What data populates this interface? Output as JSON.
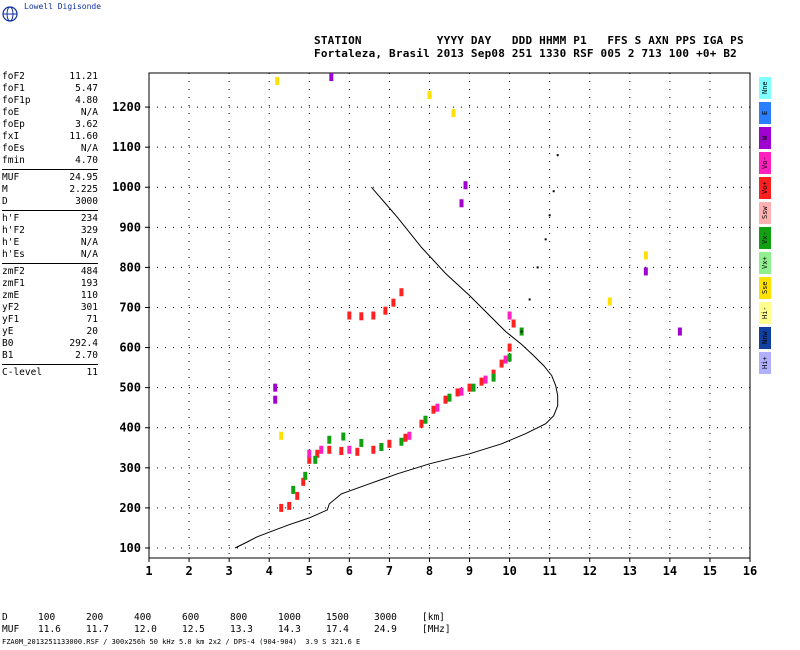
{
  "logo": {
    "text": "Lowell Digisonde"
  },
  "header": {
    "labels_line": "STATION           YYYY DAY   DDD HHMM P1   FFS S AXN PPS IGA PS",
    "values_line": "Fortaleza, Brasil 2013 Sep08 251 1330 RSF 005 2 713 100 +0+ B2"
  },
  "params": {
    "group1": [
      {
        "name": "foF2",
        "value": "11.21"
      },
      {
        "name": "foF1",
        "value": "5.47"
      },
      {
        "name": "foF1p",
        "value": "4.80"
      },
      {
        "name": "foE",
        "value": "N/A"
      },
      {
        "name": "foEp",
        "value": "3.62"
      },
      {
        "name": "fxI",
        "value": "11.60"
      },
      {
        "name": "foEs",
        "value": "N/A"
      },
      {
        "name": "fmin",
        "value": "4.70"
      }
    ],
    "group2": [
      {
        "name": "MUF",
        "value": "24.95"
      },
      {
        "name": "M",
        "value": "2.225"
      },
      {
        "name": "D",
        "value": "3000"
      }
    ],
    "group3": [
      {
        "name": "h'F",
        "value": "234"
      },
      {
        "name": "h'F2",
        "value": "329"
      },
      {
        "name": "h'E",
        "value": "N/A"
      },
      {
        "name": "h'Es",
        "value": "N/A"
      }
    ],
    "group4": [
      {
        "name": "zmF2",
        "value": "484"
      },
      {
        "name": "zmF1",
        "value": "193"
      },
      {
        "name": "zmE",
        "value": "110"
      },
      {
        "name": "yF2",
        "value": "301"
      },
      {
        "name": "yF1",
        "value": "71"
      },
      {
        "name": "yE",
        "value": "20"
      },
      {
        "name": "B0",
        "value": "292.4"
      },
      {
        "name": "B1",
        "value": "2.70"
      }
    ],
    "group5": [
      {
        "name": "C-level",
        "value": "11"
      }
    ]
  },
  "legend": [
    {
      "label": "Nne",
      "color": "#7fffff"
    },
    {
      "label": "E",
      "color": "#2a7fff"
    },
    {
      "label": "W",
      "color": "#a000d0"
    },
    {
      "label": "Vo-",
      "color": "#ff20c0"
    },
    {
      "label": "Vo+",
      "color": "#ff2020"
    },
    {
      "label": "Ssw",
      "color": "#ffb0b0"
    },
    {
      "label": "Vx-",
      "color": "#10a010"
    },
    {
      "label": "Vx+",
      "color": "#90f090"
    },
    {
      "label": "Sse",
      "color": "#ffe000"
    },
    {
      "label": "Hi-",
      "color": "#ffff90"
    },
    {
      "label": "Nnw",
      "color": "#1040a0"
    },
    {
      "label": "Hi+",
      "color": "#b0b0ff"
    }
  ],
  "muf_table": {
    "d_label": "D",
    "d_values": [
      "100",
      "200",
      "400",
      "600",
      "800",
      "1000",
      "1500",
      "3000"
    ],
    "d_unit": "[km]",
    "muf_label": "MUF",
    "muf_values": [
      "11.6",
      "11.7",
      "12.0",
      "12.5",
      "13.3",
      "14.3",
      "17.4",
      "24.9"
    ],
    "muf_unit": "[MHz]"
  },
  "footer": "FZA0M_2013251133000.RSF / 300x256h 50 kHz 5.0 km 2x2 / DPS-4 (904-904)  3.9 S 321.6 E",
  "chart_data": {
    "type": "scatter",
    "title": "",
    "xlabel": "",
    "ylabel": "",
    "xlim": [
      1,
      16
    ],
    "ylim": [
      75,
      1285
    ],
    "x_ticks": [
      1,
      2,
      3,
      4,
      5,
      6,
      7,
      8,
      9,
      10,
      11,
      12,
      13,
      14,
      15,
      16
    ],
    "y_ticks": [
      100,
      200,
      300,
      400,
      500,
      600,
      700,
      800,
      900,
      1000,
      1100,
      1200
    ],
    "grid": true,
    "series": [
      {
        "color": "#000000",
        "style": "line",
        "x": [
          6.55,
          7.2,
          7.8,
          8.4,
          9.0,
          9.5,
          9.9,
          10.3,
          10.6,
          10.85,
          11.05,
          11.15,
          11.2,
          11.2,
          11.1,
          10.9,
          10.4,
          9.8,
          9.0,
          8.0,
          7.2,
          6.5,
          5.8,
          5.5,
          5.45,
          5.0,
          4.5,
          4.1,
          3.7,
          3.45,
          3.25,
          3.15
        ],
        "y": [
          1000,
          925,
          850,
          785,
          730,
          680,
          640,
          608,
          580,
          555,
          530,
          505,
          480,
          455,
          430,
          410,
          385,
          360,
          335,
          310,
          285,
          260,
          235,
          210,
          195,
          175,
          158,
          143,
          128,
          115,
          105,
          100
        ]
      },
      {
        "color": "#ff2020",
        "style": "points",
        "x": [
          4.3,
          4.5,
          4.7,
          4.85,
          5.0,
          5.2,
          5.5,
          5.8,
          6.2,
          6.6,
          7.0,
          7.4,
          7.8,
          8.1,
          8.4,
          8.7,
          9.0,
          9.3,
          9.6,
          9.8,
          10.0,
          10.1
        ],
        "y": [
          200,
          205,
          230,
          265,
          320,
          335,
          345,
          342,
          340,
          345,
          360,
          375,
          410,
          445,
          470,
          488,
          500,
          515,
          535,
          560,
          600,
          660
        ]
      },
      {
        "color": "#ff20c0",
        "style": "points",
        "x": [
          5.0,
          5.3,
          6.0,
          6.8,
          7.5,
          8.2,
          8.8,
          9.4,
          9.9,
          10.0
        ],
        "y": [
          335,
          345,
          345,
          352,
          380,
          450,
          490,
          520,
          570,
          680
        ]
      },
      {
        "color": "#10a010",
        "style": "points",
        "x": [
          4.6,
          4.9,
          5.15,
          5.5,
          5.85,
          6.3,
          6.8,
          7.3,
          7.9,
          8.5,
          9.1,
          9.6,
          10.0,
          10.3
        ],
        "y": [
          245,
          280,
          320,
          370,
          378,
          362,
          352,
          365,
          420,
          475,
          500,
          525,
          575,
          640
        ]
      },
      {
        "color": "#ff2020",
        "style": "points",
        "x": [
          6.0,
          6.3,
          6.6,
          6.9,
          7.1,
          7.3
        ],
        "y": [
          680,
          678,
          680,
          692,
          712,
          738
        ]
      },
      {
        "color": "#000000",
        "style": "dots",
        "x": [
          10.3,
          10.5,
          10.7,
          10.9,
          11.0,
          11.1,
          11.2
        ],
        "y": [
          640,
          720,
          800,
          870,
          930,
          990,
          1080
        ]
      },
      {
        "color": "#a000d0",
        "style": "points",
        "x": [
          4.15,
          4.15,
          5.55,
          8.9,
          8.8,
          14.25,
          13.4
        ],
        "y": [
          500,
          470,
          1275,
          1005,
          960,
          640,
          790
        ]
      },
      {
        "color": "#ffe000",
        "style": "points",
        "x": [
          4.2,
          8.0,
          8.6,
          12.5,
          13.4,
          4.3
        ],
        "y": [
          1265,
          1230,
          1185,
          715,
          830,
          380
        ]
      }
    ]
  }
}
